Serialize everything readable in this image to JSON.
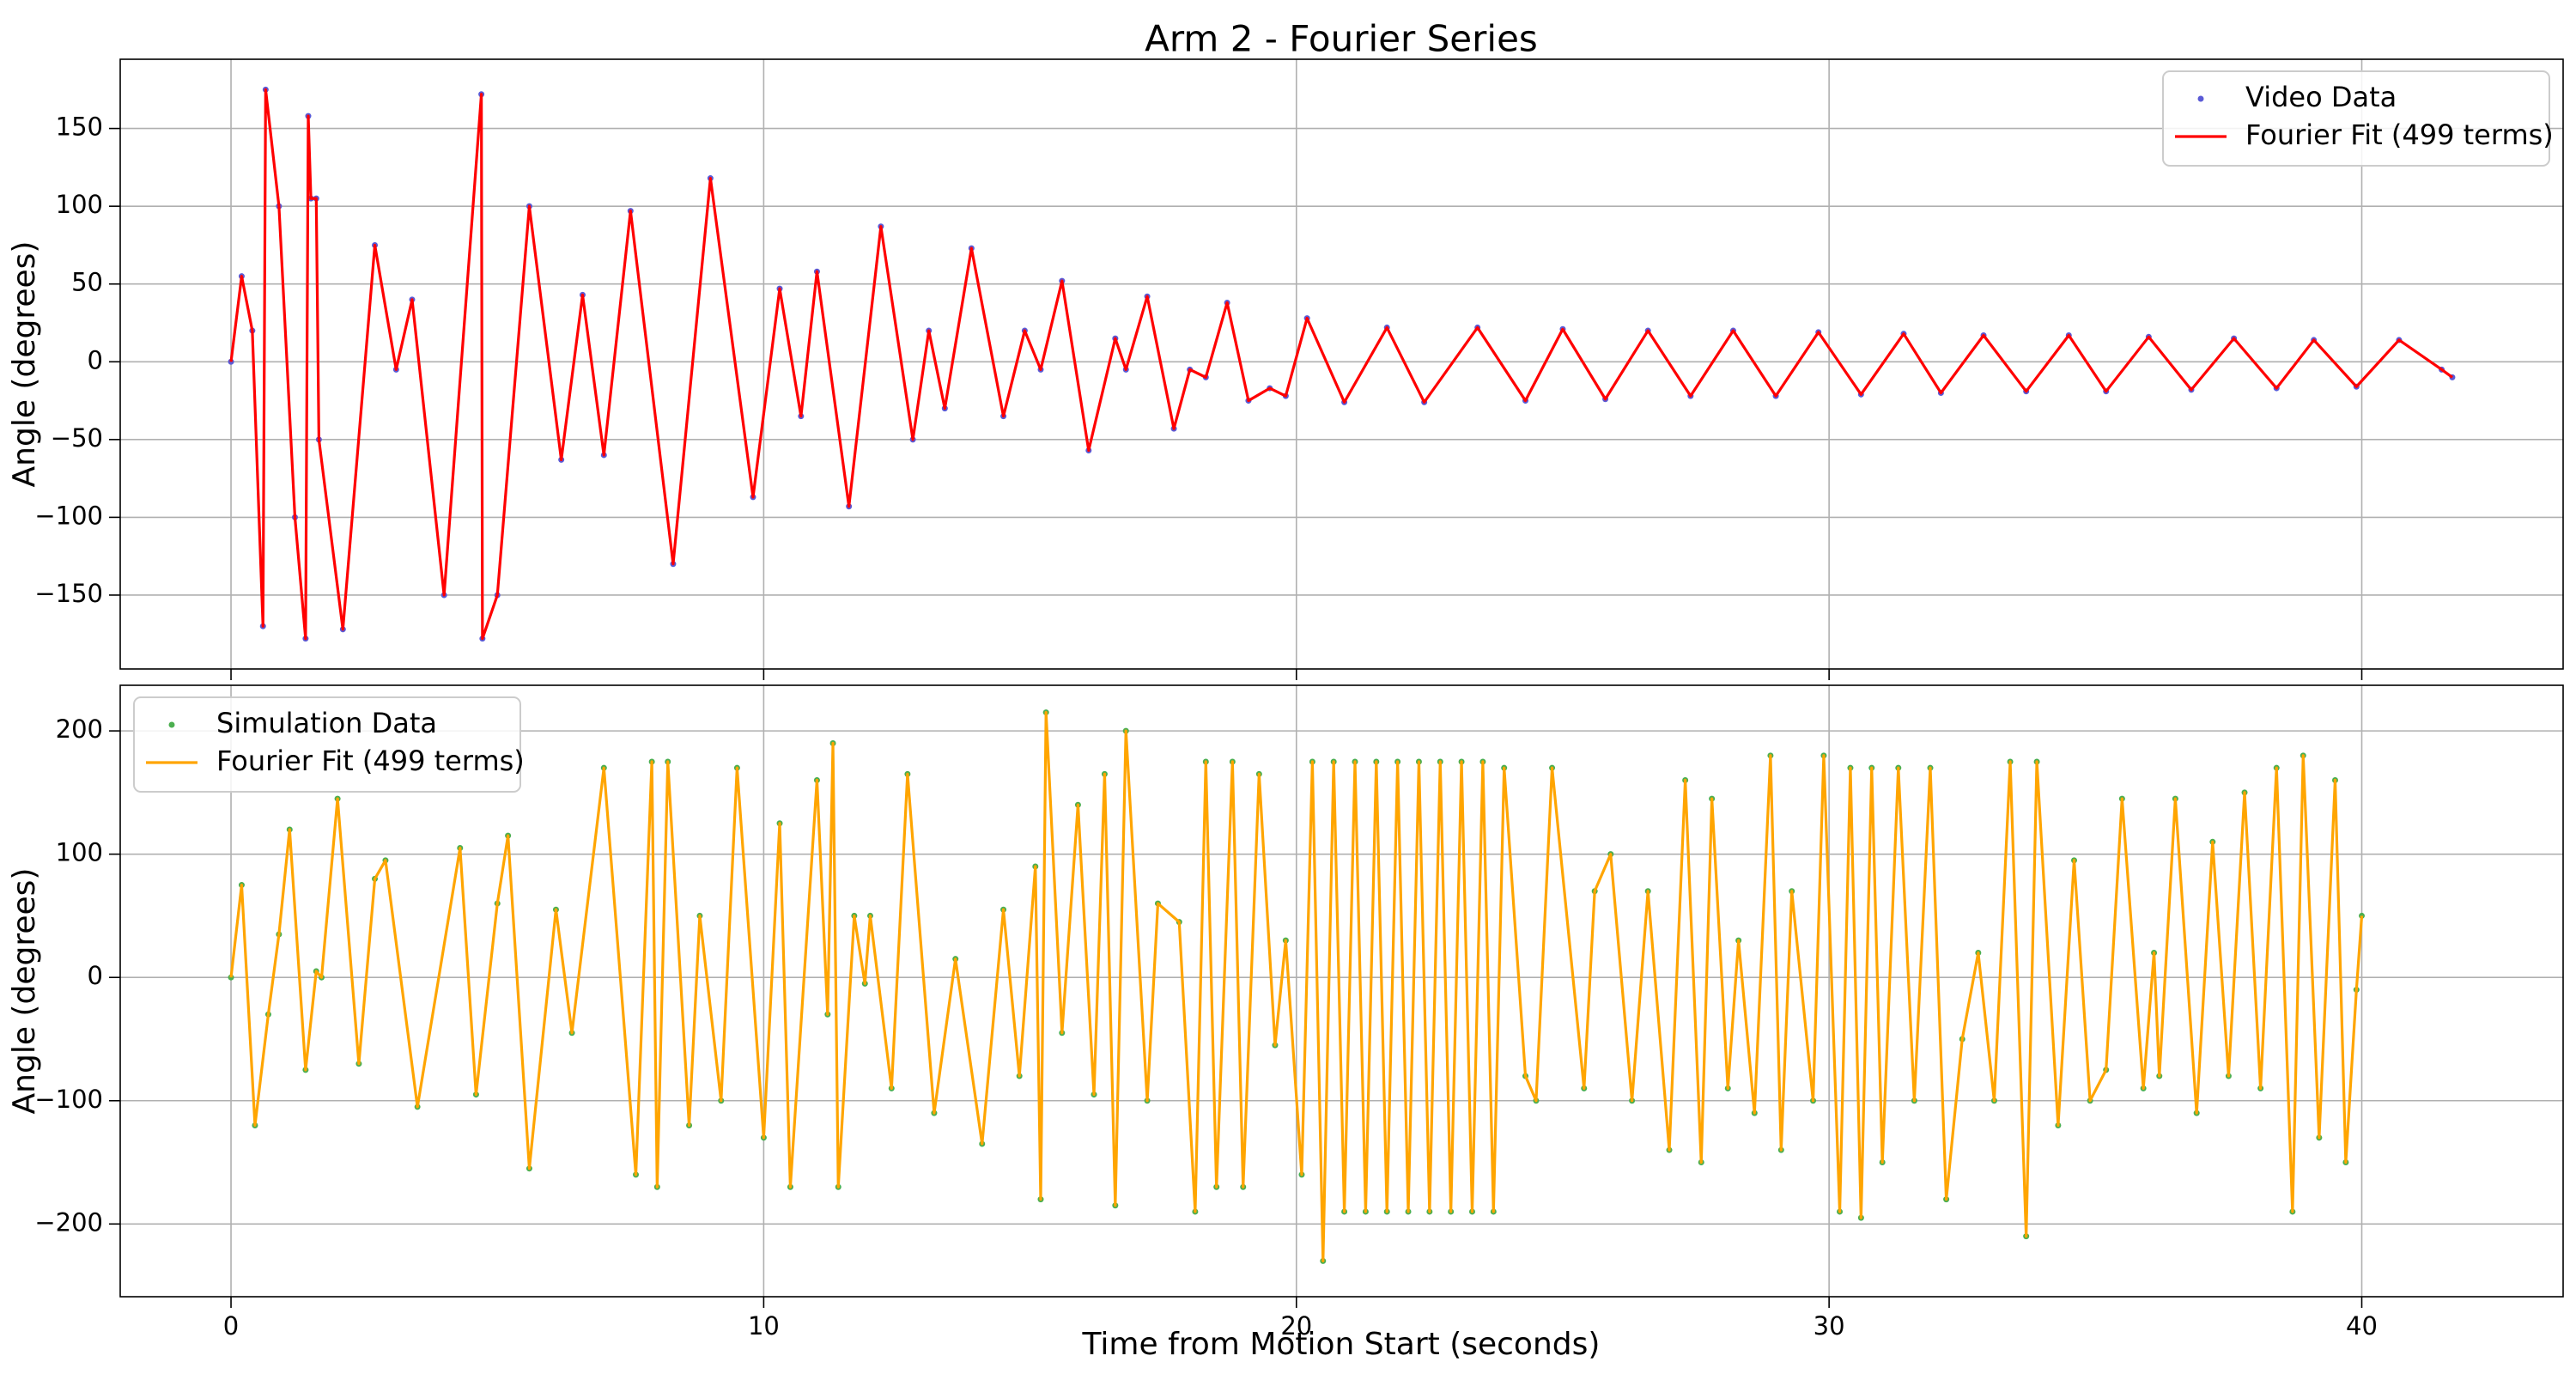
{
  "chart_data": [
    {
      "type": "line",
      "title": "Arm 2 - Fourier Series",
      "ylabel": "Angle (degrees)",
      "xlim": [
        -2.08,
        43.78
      ],
      "ylim": [
        -197.5,
        194.5
      ],
      "xticks": [
        0,
        10,
        20,
        30,
        40
      ],
      "yticks": [
        -150,
        -100,
        -50,
        0,
        50,
        100,
        150
      ],
      "yticklabels": [
        {
          "value": -150,
          "label": "−150"
        },
        {
          "value": -100,
          "label": "−100"
        },
        {
          "value": -50,
          "label": "−50"
        },
        0,
        50,
        100,
        150
      ],
      "show_xticklabels": false,
      "grid": true,
      "legend": "upper right",
      "x": [
        0,
        0.2,
        0.4,
        0.6,
        0.65,
        0.9,
        1.2,
        1.4,
        1.45,
        1.5,
        1.6,
        1.65,
        2.1,
        2.7,
        3.1,
        3.4,
        4.0,
        4.7,
        4.72,
        5.0,
        5.6,
        6.2,
        6.6,
        7.0,
        7.5,
        8.3,
        9.0,
        9.8,
        10.3,
        10.7,
        11.0,
        11.6,
        12.2,
        12.8,
        13.1,
        13.4,
        13.9,
        14.5,
        14.9,
        15.2,
        15.6,
        16.1,
        16.6,
        16.8,
        17.2,
        17.7,
        18.0,
        18.3,
        18.7,
        19.1,
        19.5,
        19.8,
        20.2,
        20.9,
        21.7,
        22.4,
        23.4,
        24.3,
        25.0,
        25.8,
        26.6,
        27.4,
        28.2,
        29.0,
        29.8,
        30.6,
        31.4,
        32.1,
        32.9,
        33.7,
        34.5,
        35.2,
        36.0,
        36.8,
        37.6,
        38.4,
        39.1,
        39.9,
        40.7,
        41.5,
        41.7
      ],
      "series": [
        {
          "name": "Video Data",
          "type": "scatter",
          "color": "#5a5ad6",
          "values": [
            0,
            55,
            20,
            -170,
            175,
            100,
            -100,
            -178,
            158,
            105,
            105,
            -50,
            -172,
            75,
            -5,
            40,
            -150,
            172,
            -178,
            -150,
            100,
            -63,
            43,
            -60,
            97,
            -130,
            118,
            -87,
            47,
            -35,
            58,
            -93,
            87,
            -50,
            20,
            -30,
            73,
            -35,
            20,
            -5,
            52,
            -57,
            15,
            -5,
            42,
            -43,
            -5,
            -10,
            38,
            -25,
            -17,
            -22,
            28,
            -26,
            22,
            -26,
            22,
            -25,
            21,
            -24,
            20,
            -22,
            20,
            -22,
            19,
            -21,
            18,
            -20,
            17,
            -19,
            17,
            -19,
            16,
            -18,
            15,
            -17,
            14,
            -16,
            14,
            -5,
            -10
          ]
        },
        {
          "name": "Fourier Fit (499 terms)",
          "type": "line",
          "color": "#ff0000",
          "values": [
            0,
            55,
            20,
            -170,
            175,
            100,
            -100,
            -178,
            158,
            105,
            105,
            -50,
            -172,
            75,
            -5,
            40,
            -150,
            172,
            -178,
            -150,
            100,
            -63,
            43,
            -60,
            97,
            -130,
            118,
            -87,
            47,
            -35,
            58,
            -93,
            87,
            -50,
            20,
            -30,
            73,
            -35,
            20,
            -5,
            52,
            -57,
            15,
            -5,
            42,
            -43,
            -5,
            -10,
            38,
            -25,
            -17,
            -22,
            28,
            -26,
            22,
            -26,
            22,
            -25,
            21,
            -24,
            20,
            -22,
            20,
            -22,
            19,
            -21,
            18,
            -20,
            17,
            -19,
            17,
            -19,
            16,
            -18,
            15,
            -17,
            14,
            -16,
            14,
            -5,
            -10
          ]
        }
      ]
    },
    {
      "type": "line",
      "xlabel": "Time from Motion Start (seconds)",
      "ylabel": "Angle (degrees)",
      "xlim": [
        -2.08,
        43.78
      ],
      "ylim": [
        -259,
        237
      ],
      "xticks": [
        0,
        10,
        20,
        30,
        40
      ],
      "yticks": [
        -200,
        -100,
        0,
        100,
        200
      ],
      "yticklabels": [
        {
          "value": -200,
          "label": "−200"
        },
        {
          "value": -100,
          "label": "−100"
        },
        0,
        100,
        200
      ],
      "show_xticklabels": true,
      "grid": true,
      "legend": "upper left",
      "x": [
        0,
        0.2,
        0.45,
        0.7,
        0.9,
        1.1,
        1.4,
        1.6,
        1.7,
        2.0,
        2.4,
        2.7,
        2.9,
        3.5,
        4.3,
        4.6,
        5.0,
        5.2,
        5.6,
        6.1,
        6.4,
        7.0,
        7.6,
        7.9,
        8.0,
        8.2,
        8.6,
        8.8,
        9.2,
        9.5,
        10.0,
        10.3,
        10.5,
        11.0,
        11.2,
        11.3,
        11.4,
        11.7,
        11.9,
        12.0,
        12.4,
        12.7,
        13.2,
        13.6,
        14.1,
        14.5,
        14.8,
        15.1,
        15.2,
        15.3,
        15.6,
        15.9,
        16.2,
        16.4,
        16.6,
        16.8,
        17.2,
        17.4,
        17.8,
        18.1,
        18.3,
        18.5,
        18.8,
        19.0,
        19.3,
        19.6,
        19.8,
        20.1,
        20.3,
        20.5,
        20.7,
        20.9,
        21.1,
        21.3,
        21.5,
        21.7,
        21.9,
        22.1,
        22.3,
        22.5,
        22.7,
        22.9,
        23.1,
        23.3,
        23.5,
        23.7,
        23.9,
        24.3,
        24.5,
        24.8,
        25.4,
        25.6,
        25.9,
        26.3,
        26.6,
        27.0,
        27.3,
        27.6,
        27.8,
        28.1,
        28.3,
        28.6,
        28.9,
        29.1,
        29.3,
        29.7,
        29.9,
        30.2,
        30.4,
        30.6,
        30.8,
        31.0,
        31.3,
        31.6,
        31.9,
        32.2,
        32.5,
        32.8,
        33.1,
        33.4,
        33.7,
        33.9,
        34.3,
        34.6,
        34.9,
        35.2,
        35.5,
        35.9,
        36.1,
        36.2,
        36.5,
        36.9,
        37.2,
        37.5,
        37.8,
        38.1,
        38.4,
        38.7,
        38.9,
        39.2,
        39.5,
        39.7,
        39.9,
        40.0
      ],
      "series": [
        {
          "name": "Simulation Data",
          "type": "scatter",
          "color": "#4caf50",
          "values": [
            0,
            75,
            -120,
            -30,
            35,
            120,
            -75,
            5,
            0,
            145,
            -70,
            80,
            95,
            -105,
            105,
            -95,
            60,
            115,
            -155,
            55,
            -45,
            170,
            -160,
            175,
            -170,
            175,
            -120,
            50,
            -100,
            170,
            -130,
            125,
            -170,
            160,
            -30,
            190,
            -170,
            50,
            -5,
            50,
            -90,
            165,
            -110,
            15,
            -135,
            55,
            -80,
            90,
            -180,
            215,
            -45,
            140,
            -95,
            165,
            -185,
            200,
            -100,
            60,
            45,
            -190,
            175,
            -170,
            175,
            -170,
            165,
            -55,
            30,
            -160,
            175,
            -230,
            175,
            -190,
            175,
            -190,
            175,
            -190,
            175,
            -190,
            175,
            -190,
            175,
            -190,
            175,
            -190,
            175,
            -190,
            170,
            -80,
            -100,
            170,
            -90,
            70,
            100,
            -100,
            70,
            -140,
            160,
            -150,
            145,
            -90,
            30,
            -110,
            180,
            -140,
            70,
            -100,
            180,
            -190,
            170,
            -195,
            170,
            -150,
            170,
            -100,
            170,
            -180,
            -50,
            20,
            -100,
            175,
            -210,
            175,
            -120,
            95,
            -100,
            -75,
            145,
            -90,
            20,
            -80,
            145,
            -110,
            110,
            -80,
            150,
            -90,
            170,
            -190,
            180,
            -130,
            160,
            -150,
            -10,
            50
          ]
        },
        {
          "name": "Fourier Fit (499 terms)",
          "type": "line",
          "color": "#ffa500",
          "values": [
            0,
            75,
            -120,
            -30,
            35,
            120,
            -75,
            5,
            0,
            145,
            -70,
            80,
            95,
            -105,
            105,
            -95,
            60,
            115,
            -155,
            55,
            -45,
            170,
            -160,
            175,
            -170,
            175,
            -120,
            50,
            -100,
            170,
            -130,
            125,
            -170,
            160,
            -30,
            190,
            -170,
            50,
            -5,
            50,
            -90,
            165,
            -110,
            15,
            -135,
            55,
            -80,
            90,
            -180,
            215,
            -45,
            140,
            -95,
            165,
            -185,
            200,
            -100,
            60,
            45,
            -190,
            175,
            -170,
            175,
            -170,
            165,
            -55,
            30,
            -160,
            175,
            -230,
            175,
            -190,
            175,
            -190,
            175,
            -190,
            175,
            -190,
            175,
            -190,
            175,
            -190,
            175,
            -190,
            175,
            -190,
            170,
            -80,
            -100,
            170,
            -90,
            70,
            100,
            -100,
            70,
            -140,
            160,
            -150,
            145,
            -90,
            30,
            -110,
            180,
            -140,
            70,
            -100,
            180,
            -190,
            170,
            -195,
            170,
            -150,
            170,
            -100,
            170,
            -180,
            -50,
            20,
            -100,
            175,
            -210,
            175,
            -120,
            95,
            -100,
            -75,
            145,
            -90,
            20,
            -80,
            145,
            -110,
            110,
            -80,
            150,
            -90,
            170,
            -190,
            180,
            -130,
            160,
            -150,
            -10,
            50
          ]
        }
      ]
    }
  ]
}
